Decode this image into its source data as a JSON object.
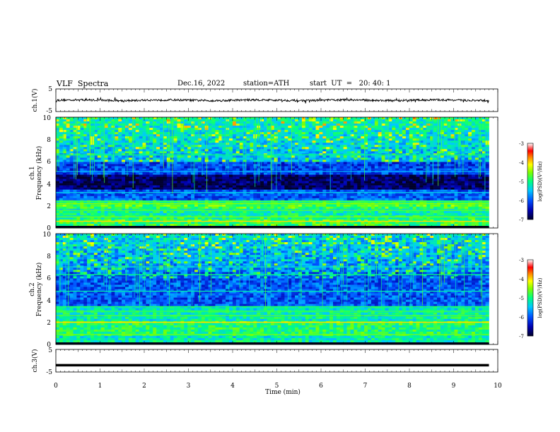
{
  "header": {
    "title": "VLF  Spectra",
    "date": "Dec.16, 2022",
    "station": "station=ATH",
    "start": "start  UT  =   20: 40: 1"
  },
  "chart_data": [
    {
      "type": "line",
      "panel": "ch1-waveform",
      "ylabel": "ch.1(V)",
      "ylim": [
        -5,
        5
      ],
      "ytick_labels": [
        "5",
        "-5"
      ],
      "xlim": [
        0,
        10
      ],
      "note_values": "noisy trace fluctuating around 0 V, roughly between -1 and +1 V over 0–9.8 min",
      "color": "#000000"
    },
    {
      "type": "heatmap",
      "panel": "ch1-spectrogram",
      "ylabel_top": "ch.1",
      "ylabel": "Frequency  (kHz)",
      "ylim": [
        0,
        10
      ],
      "ytick_labels": [
        "10",
        "8",
        "6",
        "4",
        "2",
        "0"
      ],
      "xlim": [
        0,
        10
      ],
      "data_end_min": 9.8,
      "colorbar": {
        "label": "log(PSD)(V²/Hz)",
        "range": [
          -7,
          -3
        ],
        "tick_labels": [
          "-3",
          "-4",
          "-5",
          "-6",
          "-7"
        ]
      },
      "features": [
        {
          "band_khz": [
            0,
            2.5
          ],
          "level": -5.0
        },
        {
          "band_khz": [
            3.5,
            4.8
          ],
          "level": -6.8
        },
        {
          "band_khz": [
            6.0,
            10.0
          ],
          "level": -5.5
        }
      ]
    },
    {
      "type": "heatmap",
      "panel": "ch2-spectrogram",
      "ylabel_top": "ch.2",
      "ylabel": "Frequency  (kHz)",
      "ylim": [
        0,
        10
      ],
      "ytick_labels": [
        "10",
        "8",
        "6",
        "4",
        "2",
        "0"
      ],
      "xlim": [
        0,
        10
      ],
      "data_end_min": 9.8,
      "colorbar": {
        "label": "log(PSD)(V²/Hz)",
        "range": [
          -7,
          -3
        ],
        "tick_labels": [
          "-3",
          "-4",
          "-5",
          "-6",
          "-7"
        ]
      },
      "features": [
        {
          "band_khz": [
            0,
            3.5
          ],
          "level": -5.0
        },
        {
          "band_khz": [
            2.0,
            2.0
          ],
          "level": -4.2
        },
        {
          "band_khz": [
            6.5,
            10.0
          ],
          "level": -5.5
        }
      ]
    },
    {
      "type": "line",
      "panel": "ch3-waveform",
      "ylabel": "ch.3(V)",
      "ylim": [
        -5,
        5
      ],
      "ytick_labels": [
        "5",
        "-5"
      ],
      "xlim": [
        0,
        10
      ],
      "xlabel": "Time  (min)",
      "xtick_labels": [
        "0",
        "1",
        "2",
        "3",
        "4",
        "5",
        "6",
        "7",
        "8",
        "9",
        "10"
      ],
      "note_values": "flat thick trace at about -2 V from 0 to 9.8 min",
      "constant_value": -2,
      "color": "#000000"
    }
  ]
}
